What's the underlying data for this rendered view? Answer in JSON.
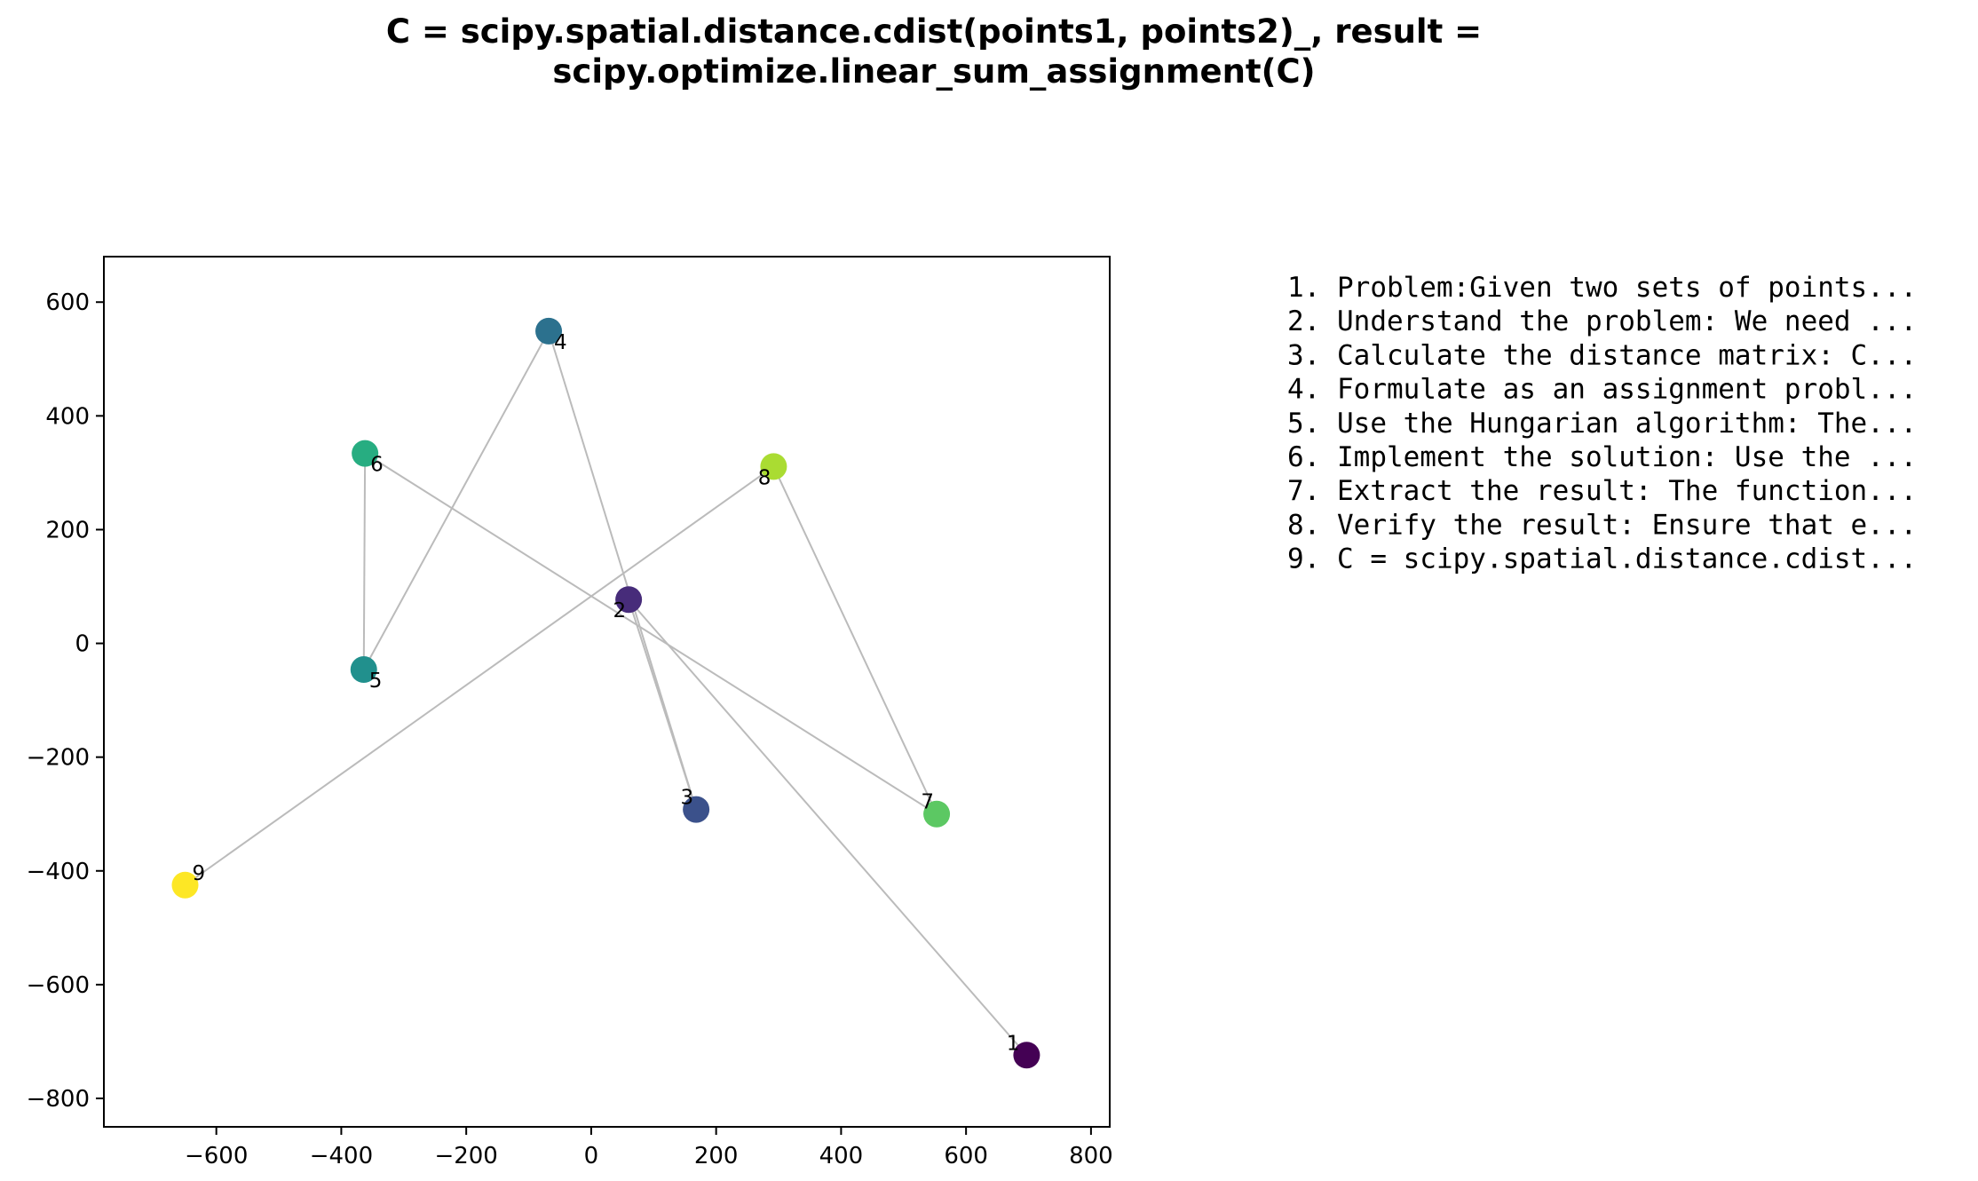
{
  "chart_data": {
    "type": "scatter",
    "title": "C = scipy.spatial.distance.cdist(points1, points2)_, result =\nscipy.optimize.linear_sum_assignment(C)",
    "xlabel": "",
    "ylabel": "",
    "xlim": [
      -780,
      830
    ],
    "ylim": [
      -850,
      680
    ],
    "xticks": [
      -600,
      -400,
      -200,
      0,
      200,
      400,
      600,
      800
    ],
    "xtick_labels": [
      "−600",
      "−400",
      "−200",
      "0",
      "200",
      "400",
      "600",
      "800"
    ],
    "yticks": [
      600,
      400,
      200,
      0,
      -200,
      -400,
      -600,
      -800
    ],
    "ytick_labels": [
      "600",
      "400",
      "200",
      "0",
      "−200",
      "−400",
      "−600",
      "−800"
    ],
    "grid": false,
    "colormap": "viridis",
    "line_color": "#bbbbbb",
    "points": [
      {
        "label": "1",
        "x": 697,
        "y": -724,
        "color": "#440154"
      },
      {
        "label": "2",
        "x": 60,
        "y": 77,
        "color": "#472c7a"
      },
      {
        "label": "3",
        "x": 168,
        "y": -292,
        "color": "#3b518b"
      },
      {
        "label": "4",
        "x": -68,
        "y": 549,
        "color": "#2c718e"
      },
      {
        "label": "5",
        "x": -364,
        "y": -46,
        "color": "#21908d"
      },
      {
        "label": "6",
        "x": -362,
        "y": 334,
        "color": "#27ad81"
      },
      {
        "label": "7",
        "x": 553,
        "y": -300,
        "color": "#5cc863"
      },
      {
        "label": "8",
        "x": 292,
        "y": 311,
        "color": "#aadc32"
      },
      {
        "label": "9",
        "x": -650,
        "y": -425,
        "color": "#fde725"
      }
    ],
    "edges": [
      [
        6,
        5
      ],
      [
        5,
        4
      ],
      [
        4,
        3
      ],
      [
        3,
        2
      ],
      [
        2,
        1
      ],
      [
        6,
        7
      ],
      [
        7,
        8
      ],
      [
        8,
        9
      ]
    ],
    "annotation_steps": [
      "1. Problem:Given two sets of points...",
      "2. Understand the problem: We need ...",
      "3. Calculate the distance matrix: C...",
      "4. Formulate as an assignment probl...",
      "5. Use the Hungarian algorithm: The...",
      "6. Implement the solution: Use the ...",
      "7. Extract the result: The function...",
      "8. Verify the result: Ensure that e...",
      "9. C = scipy.spatial.distance.cdist..."
    ]
  }
}
